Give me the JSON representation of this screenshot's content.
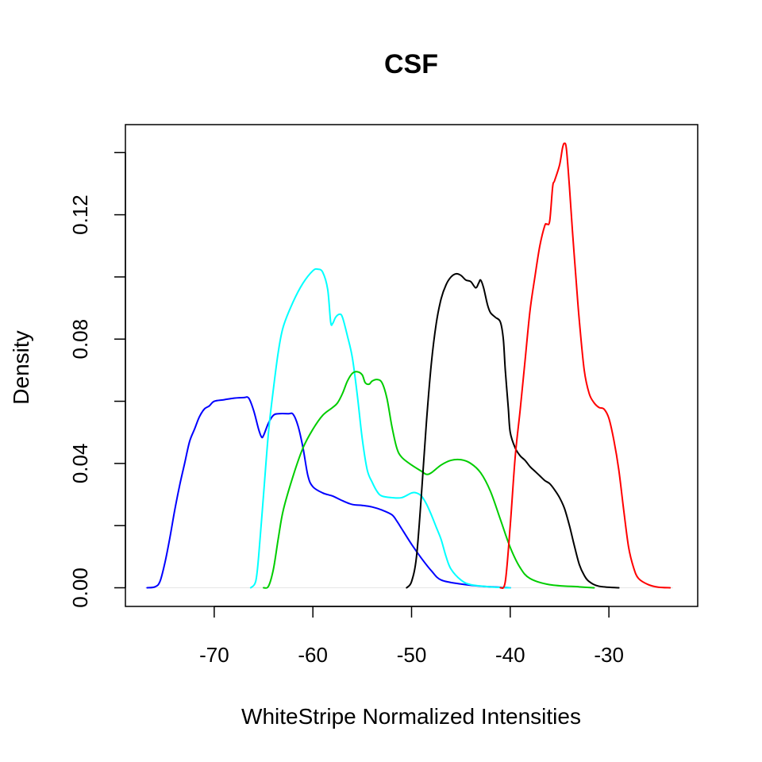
{
  "chart_data": {
    "type": "line",
    "title": "CSF",
    "xlabel": "WhiteStripe Normalized Intensities",
    "ylabel": "Density",
    "xlim": [
      -79,
      -21
    ],
    "ylim": [
      -0.006,
      0.149
    ],
    "x_ticks": [
      -70,
      -60,
      -50,
      -40,
      -30
    ],
    "y_ticks": [
      0.0,
      0.04,
      0.08,
      0.12
    ],
    "x_tick_labels": [
      "-70",
      "-60",
      "-50",
      "-40",
      "-30"
    ],
    "y_tick_labels": [
      "0.00",
      "0.04",
      "0.08",
      "0.12"
    ],
    "grid": false,
    "legend": false,
    "series": [
      {
        "color": "#0000ff",
        "points": [
          [
            -76.8,
            0.0
          ],
          [
            -76,
            0.0003
          ],
          [
            -75.5,
            0.002
          ],
          [
            -75,
            0.008
          ],
          [
            -74.5,
            0.016
          ],
          [
            -74,
            0.025
          ],
          [
            -73.5,
            0.033
          ],
          [
            -73,
            0.04
          ],
          [
            -72.5,
            0.047
          ],
          [
            -72,
            0.051
          ],
          [
            -71.5,
            0.055
          ],
          [
            -71,
            0.0575
          ],
          [
            -70.5,
            0.0585
          ],
          [
            -70,
            0.06
          ],
          [
            -69,
            0.0605
          ],
          [
            -68,
            0.061
          ],
          [
            -67,
            0.0612
          ],
          [
            -66.5,
            0.061
          ],
          [
            -66,
            0.057
          ],
          [
            -65.5,
            0.051
          ],
          [
            -65.2,
            0.0485
          ],
          [
            -65,
            0.049
          ],
          [
            -64.5,
            0.053
          ],
          [
            -64,
            0.0555
          ],
          [
            -63.5,
            0.056
          ],
          [
            -62.5,
            0.056
          ],
          [
            -62,
            0.0558
          ],
          [
            -61.5,
            0.052
          ],
          [
            -61,
            0.045
          ],
          [
            -60.5,
            0.036
          ],
          [
            -60,
            0.0325
          ],
          [
            -59,
            0.0305
          ],
          [
            -58,
            0.0295
          ],
          [
            -57,
            0.028
          ],
          [
            -56,
            0.0268
          ],
          [
            -55,
            0.0265
          ],
          [
            -54,
            0.026
          ],
          [
            -53,
            0.025
          ],
          [
            -52,
            0.0235
          ],
          [
            -51.5,
            0.0215
          ],
          [
            -51,
            0.019
          ],
          [
            -50,
            0.014
          ],
          [
            -49,
            0.0095
          ],
          [
            -48,
            0.0055
          ],
          [
            -47,
            0.0025
          ],
          [
            -45,
            0.0012
          ],
          [
            -43,
            0.0005
          ],
          [
            -40,
            0.0
          ]
        ]
      },
      {
        "color": "#00ffff",
        "points": [
          [
            -66.3,
            0.0
          ],
          [
            -65.8,
            0.002
          ],
          [
            -65.5,
            0.01
          ],
          [
            -65,
            0.03
          ],
          [
            -64.5,
            0.05
          ],
          [
            -64,
            0.064
          ],
          [
            -63.5,
            0.076
          ],
          [
            -63,
            0.084
          ],
          [
            -62,
            0.092
          ],
          [
            -61,
            0.098
          ],
          [
            -60,
            0.102
          ],
          [
            -59.5,
            0.1025
          ],
          [
            -59,
            0.1015
          ],
          [
            -58.5,
            0.096
          ],
          [
            -58.2,
            0.0855
          ],
          [
            -58,
            0.085
          ],
          [
            -57.7,
            0.087
          ],
          [
            -57.3,
            0.088
          ],
          [
            -57,
            0.087
          ],
          [
            -56.5,
            0.081
          ],
          [
            -56,
            0.074
          ],
          [
            -55.5,
            0.062
          ],
          [
            -55,
            0.048
          ],
          [
            -54.5,
            0.038
          ],
          [
            -54,
            0.034
          ],
          [
            -53.5,
            0.031
          ],
          [
            -53,
            0.0295
          ],
          [
            -52,
            0.029
          ],
          [
            -51,
            0.029
          ],
          [
            -50,
            0.0305
          ],
          [
            -49.5,
            0.0305
          ],
          [
            -49,
            0.0295
          ],
          [
            -48.5,
            0.027
          ],
          [
            -48,
            0.0235
          ],
          [
            -47.5,
            0.0195
          ],
          [
            -47,
            0.0155
          ],
          [
            -46.5,
            0.01
          ],
          [
            -46,
            0.006
          ],
          [
            -45,
            0.0025
          ],
          [
            -44,
            0.001
          ],
          [
            -42,
            0.0003
          ],
          [
            -40,
            0.0
          ]
        ]
      },
      {
        "color": "#00cd00",
        "points": [
          [
            -65,
            0.0
          ],
          [
            -64.5,
            0.0005
          ],
          [
            -64,
            0.006
          ],
          [
            -63.5,
            0.016
          ],
          [
            -63,
            0.025
          ],
          [
            -62,
            0.036
          ],
          [
            -61,
            0.045
          ],
          [
            -60,
            0.051
          ],
          [
            -59,
            0.0555
          ],
          [
            -58,
            0.058
          ],
          [
            -57.5,
            0.0595
          ],
          [
            -57,
            0.0625
          ],
          [
            -56.5,
            0.0665
          ],
          [
            -56,
            0.069
          ],
          [
            -55.5,
            0.0695
          ],
          [
            -55,
            0.0685
          ],
          [
            -54.7,
            0.066
          ],
          [
            -54.3,
            0.0655
          ],
          [
            -54,
            0.0665
          ],
          [
            -53.5,
            0.067
          ],
          [
            -53,
            0.066
          ],
          [
            -52.5,
            0.061
          ],
          [
            -52,
            0.052
          ],
          [
            -51.5,
            0.045
          ],
          [
            -51,
            0.042
          ],
          [
            -50,
            0.0395
          ],
          [
            -49,
            0.0375
          ],
          [
            -48.5,
            0.0365
          ],
          [
            -48,
            0.037
          ],
          [
            -47,
            0.0395
          ],
          [
            -46,
            0.041
          ],
          [
            -45,
            0.0412
          ],
          [
            -44,
            0.04
          ],
          [
            -43,
            0.037
          ],
          [
            -42,
            0.031
          ],
          [
            -41,
            0.022
          ],
          [
            -40,
            0.013
          ],
          [
            -39,
            0.0065
          ],
          [
            -38,
            0.003
          ],
          [
            -36,
            0.001
          ],
          [
            -33,
            0.0003
          ],
          [
            -31.5,
            0.0
          ]
        ]
      },
      {
        "color": "#000000",
        "points": [
          [
            -50.5,
            0.0
          ],
          [
            -50,
            0.002
          ],
          [
            -49.5,
            0.01
          ],
          [
            -49,
            0.03
          ],
          [
            -48.5,
            0.053
          ],
          [
            -48,
            0.072
          ],
          [
            -47.5,
            0.085
          ],
          [
            -47,
            0.093
          ],
          [
            -46.5,
            0.0975
          ],
          [
            -46,
            0.1
          ],
          [
            -45.5,
            0.101
          ],
          [
            -45,
            0.1005
          ],
          [
            -44.5,
            0.099
          ],
          [
            -44,
            0.0985
          ],
          [
            -43.5,
            0.0965
          ],
          [
            -43.2,
            0.098
          ],
          [
            -43,
            0.099
          ],
          [
            -42.7,
            0.0965
          ],
          [
            -42.3,
            0.091
          ],
          [
            -42,
            0.0885
          ],
          [
            -41.5,
            0.087
          ],
          [
            -41,
            0.0855
          ],
          [
            -40.7,
            0.08
          ],
          [
            -40.5,
            0.07
          ],
          [
            -40.2,
            0.058
          ],
          [
            -40,
            0.05
          ],
          [
            -39.5,
            0.045
          ],
          [
            -39,
            0.0425
          ],
          [
            -38.5,
            0.041
          ],
          [
            -38,
            0.039
          ],
          [
            -37.5,
            0.0375
          ],
          [
            -37,
            0.036
          ],
          [
            -36.5,
            0.0345
          ],
          [
            -36,
            0.0335
          ],
          [
            -35.5,
            0.0315
          ],
          [
            -35,
            0.029
          ],
          [
            -34.5,
            0.0255
          ],
          [
            -34,
            0.02
          ],
          [
            -33.5,
            0.0135
          ],
          [
            -33,
            0.0075
          ],
          [
            -32.5,
            0.004
          ],
          [
            -32,
            0.002
          ],
          [
            -31,
            0.0005
          ],
          [
            -29,
            0.0
          ]
        ]
      },
      {
        "color": "#ff0000",
        "points": [
          [
            -41,
            0.0
          ],
          [
            -40.5,
            0.002
          ],
          [
            -40,
            0.02
          ],
          [
            -39.5,
            0.042
          ],
          [
            -39,
            0.057
          ],
          [
            -38.5,
            0.073
          ],
          [
            -38,
            0.089
          ],
          [
            -37.5,
            0.1
          ],
          [
            -37,
            0.11
          ],
          [
            -36.5,
            0.1165
          ],
          [
            -36.3,
            0.117
          ],
          [
            -36,
            0.118
          ],
          [
            -35.7,
            0.129
          ],
          [
            -35.5,
            0.131
          ],
          [
            -35,
            0.136
          ],
          [
            -34.7,
            0.1415
          ],
          [
            -34.5,
            0.143
          ],
          [
            -34.3,
            0.141
          ],
          [
            -34,
            0.129
          ],
          [
            -33.7,
            0.115
          ],
          [
            -33.3,
            0.098
          ],
          [
            -33,
            0.086
          ],
          [
            -32.5,
            0.07
          ],
          [
            -32,
            0.0625
          ],
          [
            -31.5,
            0.0595
          ],
          [
            -31,
            0.058
          ],
          [
            -30.5,
            0.0575
          ],
          [
            -30,
            0.0545
          ],
          [
            -29.5,
            0.0475
          ],
          [
            -29,
            0.038
          ],
          [
            -28.5,
            0.025
          ],
          [
            -28,
            0.013
          ],
          [
            -27.5,
            0.0065
          ],
          [
            -27,
            0.003
          ],
          [
            -26,
            0.001
          ],
          [
            -25,
            0.0002
          ],
          [
            -23.8,
            0.0
          ]
        ]
      }
    ]
  }
}
